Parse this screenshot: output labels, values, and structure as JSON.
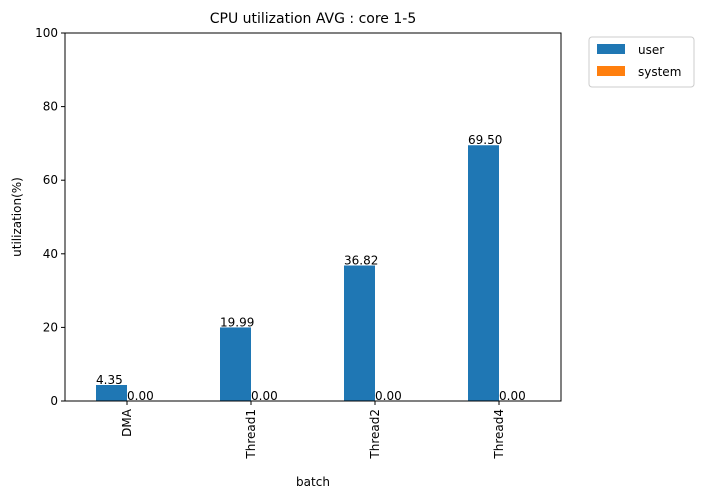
{
  "chart_data": {
    "type": "bar",
    "title": "CPU utilization AVG : core 1-5",
    "xlabel": "batch",
    "ylabel": "utilization(%)",
    "ylim": [
      0,
      100
    ],
    "yticks": [
      "0",
      "20",
      "40",
      "60",
      "80",
      "100"
    ],
    "categories": [
      "DMA",
      "Thread1",
      "Thread2",
      "Thread4"
    ],
    "series": [
      {
        "name": "user",
        "color": "#1f77b4",
        "values": [
          4.35,
          19.99,
          36.82,
          69.5
        ],
        "labels": [
          "4.35",
          "19.99",
          "36.82",
          "69.50"
        ]
      },
      {
        "name": "system",
        "color": "#ff7f0e",
        "values": [
          0.0,
          0.0,
          0.0,
          0.0
        ],
        "labels": [
          "0.00",
          "0.00",
          "0.00",
          "0.00"
        ]
      }
    ],
    "grid": false,
    "legend_position": "outside-top-right"
  }
}
